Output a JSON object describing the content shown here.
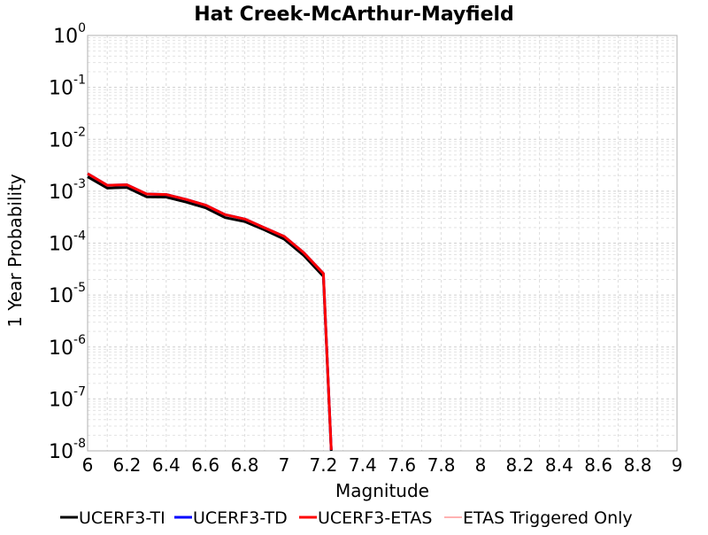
{
  "chart_data": {
    "type": "line",
    "title": "Hat Creek-McArthur-Mayfield",
    "xlabel": "Magnitude",
    "ylabel": "1 Year Probability",
    "xlim": [
      6,
      9
    ],
    "ylim": [
      1e-08,
      1
    ],
    "y_scale": "log",
    "grid": true,
    "legend_position": "bottom",
    "x_ticks": [
      "6",
      "6.2",
      "6.4",
      "6.6",
      "6.8",
      "7",
      "7.2",
      "7.4",
      "7.6",
      "7.8",
      "8",
      "8.2",
      "8.4",
      "8.6",
      "8.8",
      "9"
    ],
    "y_ticks": [
      {
        "base": "10",
        "exp": "0"
      },
      {
        "base": "10",
        "exp": "-1"
      },
      {
        "base": "10",
        "exp": "-2"
      },
      {
        "base": "10",
        "exp": "-3"
      },
      {
        "base": "10",
        "exp": "-4"
      },
      {
        "base": "10",
        "exp": "-5"
      },
      {
        "base": "10",
        "exp": "-6"
      },
      {
        "base": "10",
        "exp": "-7"
      },
      {
        "base": "10",
        "exp": "-8"
      }
    ],
    "series": [
      {
        "name": "UCERF3-TI",
        "color": "#000000",
        "x": [
          6.0,
          6.1,
          6.2,
          6.3,
          6.4,
          6.5,
          6.6,
          6.7,
          6.8,
          6.9,
          7.0,
          7.1,
          7.2,
          7.24
        ],
        "y": [
          0.0019,
          0.00115,
          0.00118,
          0.00078,
          0.00077,
          0.00062,
          0.00048,
          0.00031,
          0.00026,
          0.00018,
          0.00012,
          5.8e-05,
          2.3e-05,
          1e-08
        ]
      },
      {
        "name": "UCERF3-TD",
        "color": "#0000ff",
        "x": [
          6.0,
          6.1,
          6.2,
          6.3,
          6.4,
          6.5,
          6.6,
          6.7,
          6.8,
          6.9,
          7.0,
          7.1,
          7.2,
          7.24
        ],
        "y": [
          0.0021,
          0.00125,
          0.00128,
          0.00085,
          0.00083,
          0.00067,
          0.00052,
          0.00034,
          0.00028,
          0.00019,
          0.00013,
          6.3e-05,
          2.5e-05,
          1e-08
        ]
      },
      {
        "name": "UCERF3-ETAS",
        "color": "#ff0000",
        "x": [
          6.0,
          6.1,
          6.2,
          6.3,
          6.4,
          6.5,
          6.6,
          6.7,
          6.8,
          6.9,
          7.0,
          7.1,
          7.2,
          7.24
        ],
        "y": [
          0.0021,
          0.00125,
          0.00128,
          0.00085,
          0.00083,
          0.00067,
          0.00052,
          0.00034,
          0.00028,
          0.00019,
          0.00013,
          6.3e-05,
          2.5e-05,
          1e-08
        ]
      },
      {
        "name": "ETAS Triggered Only",
        "color": "#ff6666",
        "x": [],
        "y": []
      }
    ]
  }
}
